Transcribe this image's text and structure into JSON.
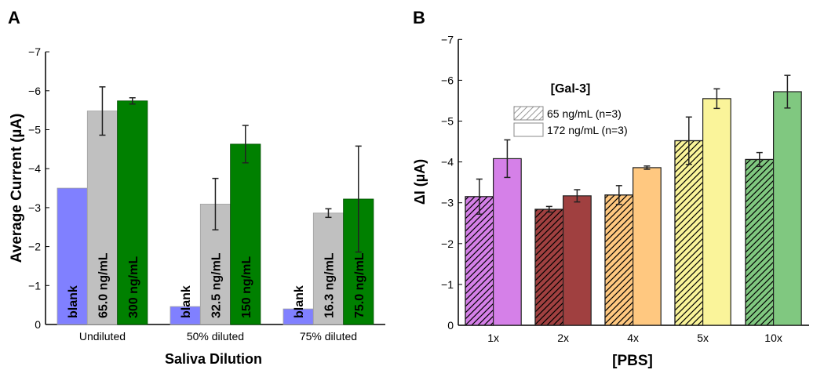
{
  "chart_data": [
    {
      "panel_label": "A",
      "type": "bar",
      "title": "",
      "xlabel": "Saliva Dilution",
      "ylabel": "Average Current (µA)",
      "ylim": [
        0,
        -7
      ],
      "yticks": [
        "0",
        "−1",
        "−2",
        "−3",
        "−4",
        "−5",
        "−6",
        "−7"
      ],
      "grid": false,
      "categories": [
        "Undiluted",
        "50% diluted",
        "75% diluted"
      ],
      "groups": [
        {
          "bars": [
            {
              "label": "blank",
              "value": -3.5,
              "error": 0,
              "color": "#8080ff"
            },
            {
              "label": "65.0 ng/mL",
              "value": -5.48,
              "error": 0.62,
              "color": "#c0c0c0"
            },
            {
              "label": "300 ng/mL",
              "value": -5.74,
              "error": 0.08,
              "color": "#008000"
            }
          ]
        },
        {
          "bars": [
            {
              "label": "blank",
              "value": -0.46,
              "error": 0,
              "color": "#8080ff"
            },
            {
              "label": "32.5 ng/mL",
              "value": -3.09,
              "error": 0.66,
              "color": "#c0c0c0"
            },
            {
              "label": "150 ng/mL",
              "value": -4.63,
              "error": 0.48,
              "color": "#008000"
            }
          ]
        },
        {
          "bars": [
            {
              "label": "blank",
              "value": -0.4,
              "error": 0,
              "color": "#8080ff"
            },
            {
              "label": "16.3 ng/mL",
              "value": -2.86,
              "error": 0.11,
              "color": "#c0c0c0"
            },
            {
              "label": "75.0 ng/mL",
              "value": -3.22,
              "error": 1.36,
              "color": "#008000"
            }
          ]
        }
      ]
    },
    {
      "panel_label": "B",
      "type": "bar",
      "title": "",
      "xlabel": "[PBS]",
      "ylabel": "ΔI (µA)",
      "ylim": [
        0,
        -7
      ],
      "yticks": [
        "0",
        "−1",
        "−2",
        "−3",
        "−4",
        "−5",
        "−6",
        "−7"
      ],
      "grid": false,
      "categories": [
        "1x",
        "2x",
        "4x",
        "5x",
        "10x"
      ],
      "colors": [
        "#d580e8",
        "#a04040",
        "#ffc880",
        "#faf49a",
        "#80c880"
      ],
      "legend": {
        "title": "[Gal-3]",
        "placement": "top-left",
        "entries": [
          "65 ng/mL (n=3)",
          "172 ng/mL (n=3)"
        ]
      },
      "series": [
        {
          "name": "65 ng/mL (n=3)",
          "pattern": "hatched",
          "values": [
            -3.15,
            -2.84,
            -3.19,
            -4.52,
            -4.06
          ],
          "errors": [
            0.43,
            0.07,
            0.23,
            0.58,
            0.17
          ]
        },
        {
          "name": "172 ng/mL (n=3)",
          "pattern": "solid",
          "values": [
            -4.08,
            -3.17,
            -3.86,
            -5.55,
            -5.72
          ],
          "errors": [
            0.46,
            0.15,
            0.04,
            0.24,
            0.4
          ]
        }
      ]
    }
  ]
}
